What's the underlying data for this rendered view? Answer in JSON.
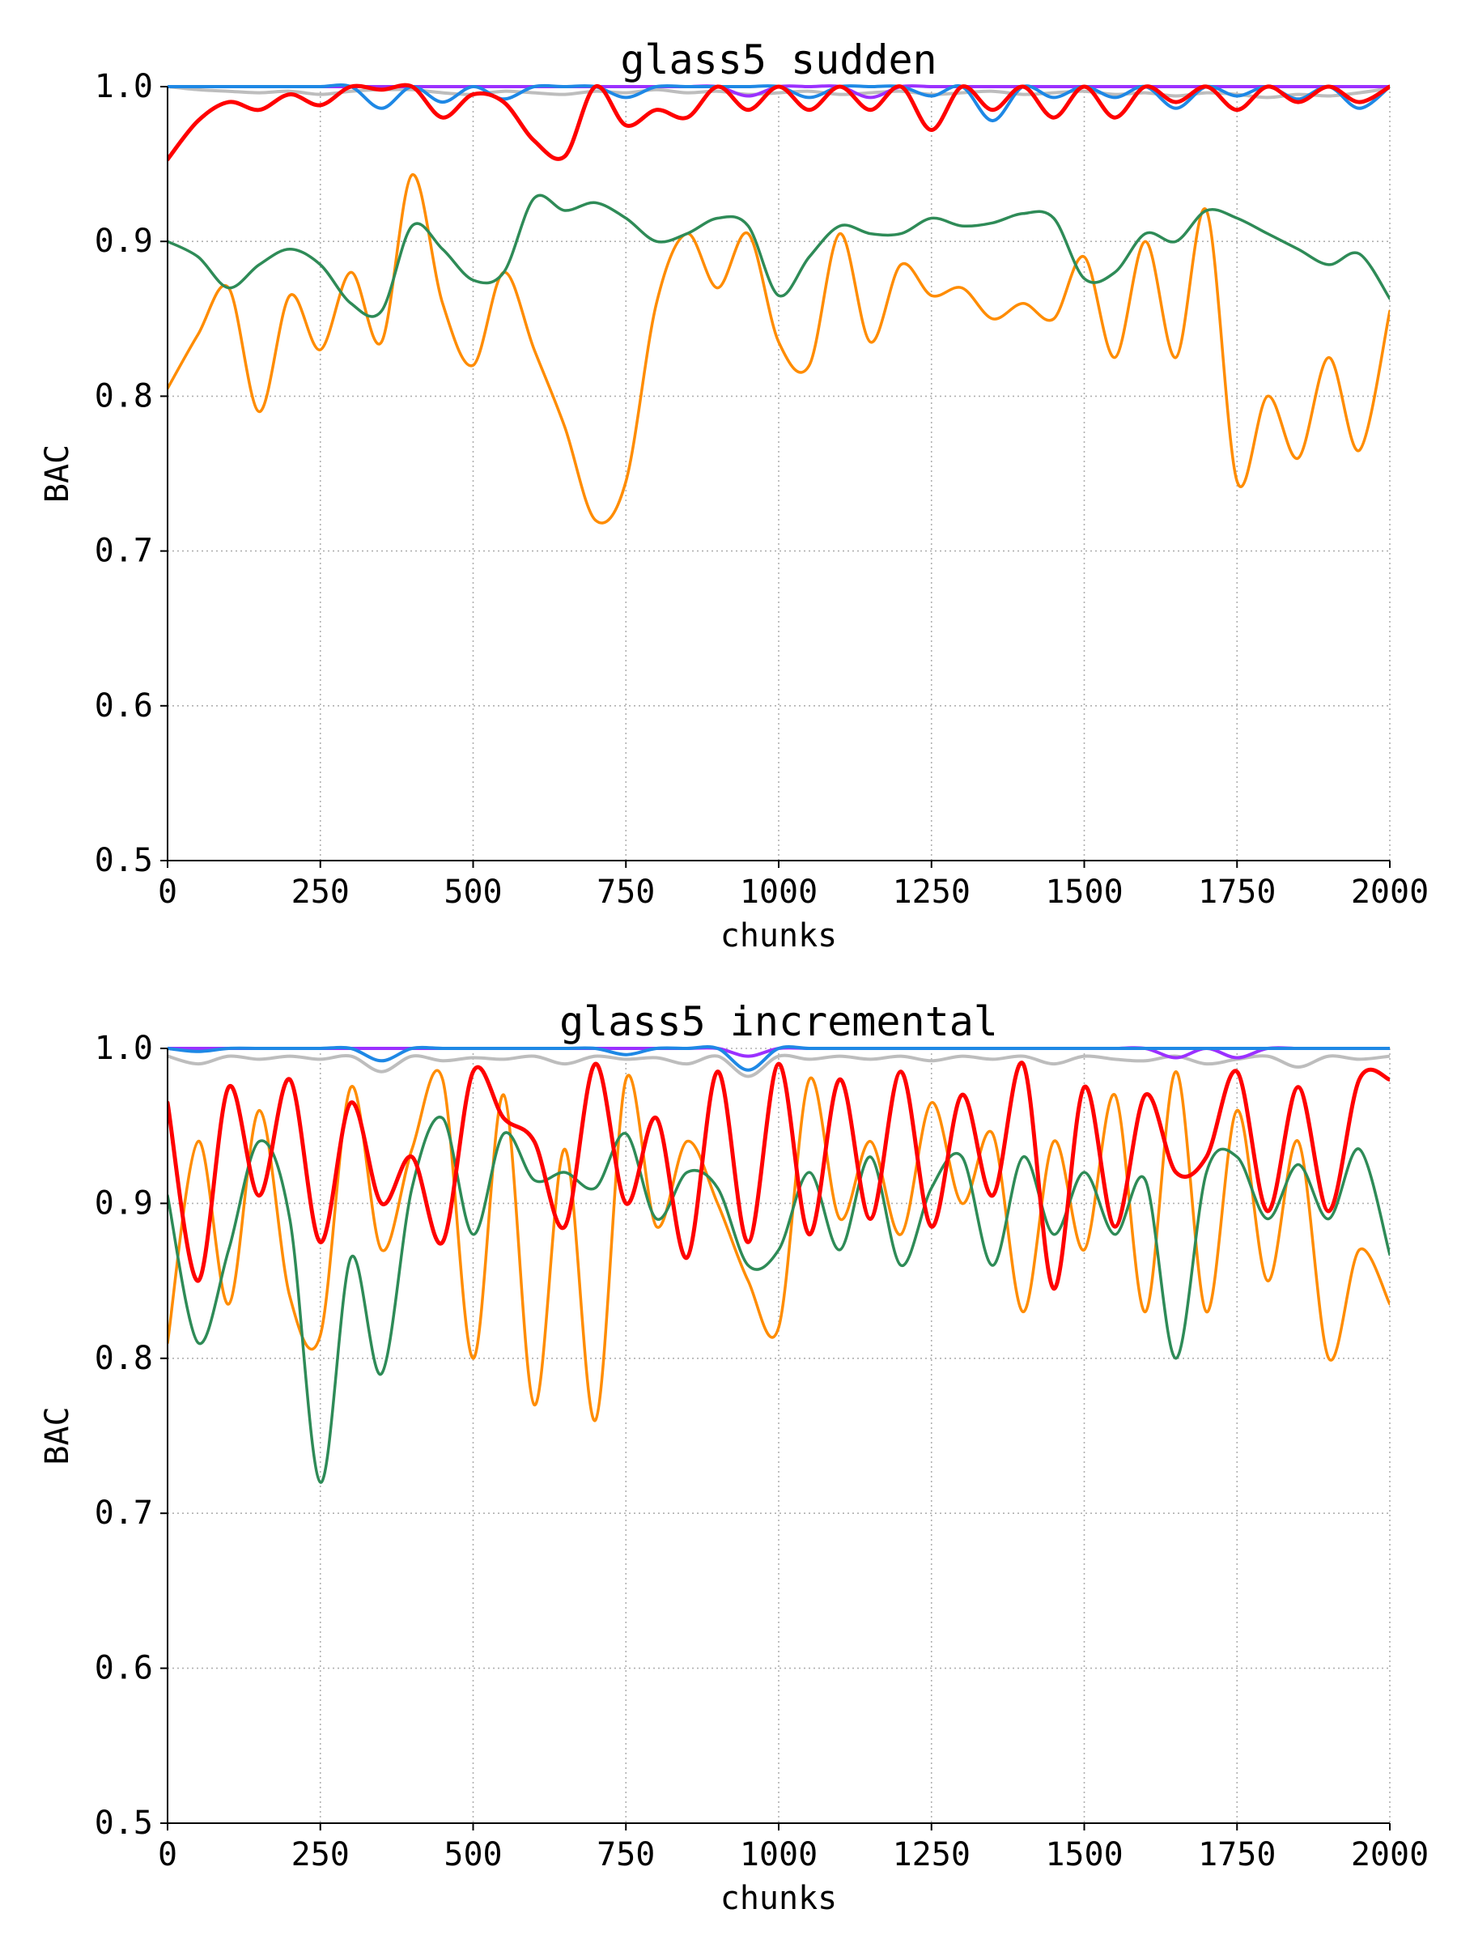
{
  "chart_data": [
    {
      "type": "line",
      "title": "glass5 sudden",
      "xlabel": "chunks",
      "ylabel": "BAC",
      "xlim": [
        0,
        2000
      ],
      "ylim": [
        0.5,
        1.0
      ],
      "x_ticks": [
        "0",
        "250",
        "500",
        "750",
        "1000",
        "1250",
        "1500",
        "1750",
        "2000"
      ],
      "y_ticks": [
        "0.5",
        "0.6",
        "0.7",
        "0.8",
        "0.9",
        "1.0"
      ],
      "grid": true,
      "legend": "none",
      "x": [
        0,
        50,
        100,
        150,
        200,
        250,
        300,
        350,
        400,
        450,
        500,
        550,
        600,
        650,
        700,
        750,
        800,
        850,
        900,
        950,
        1000,
        1050,
        1100,
        1150,
        1200,
        1250,
        1300,
        1350,
        1400,
        1450,
        1500,
        1550,
        1600,
        1650,
        1700,
        1750,
        1800,
        1850,
        1900,
        1950,
        2000
      ],
      "series": [
        {
          "color": "#bdbdbd",
          "width": 4,
          "values": [
            1.0,
            0.998,
            0.997,
            0.996,
            0.997,
            0.995,
            0.997,
            0.998,
            0.998,
            0.996,
            0.995,
            0.997,
            0.996,
            0.995,
            0.997,
            0.996,
            0.998,
            0.996,
            0.997,
            0.995,
            0.996,
            0.997,
            0.995,
            0.996,
            0.997,
            0.995,
            0.996,
            0.997,
            0.995,
            0.996,
            0.997,
            0.995,
            0.996,
            0.994,
            0.996,
            0.995,
            0.993,
            0.995,
            0.994,
            0.996,
            0.999
          ]
        },
        {
          "color": "#9b30ff",
          "width": 4,
          "values": [
            1.0,
            1.0,
            1.0,
            1.0,
            1.0,
            1.0,
            1.0,
            1.0,
            1.0,
            1.0,
            1.0,
            1.0,
            1.0,
            1.0,
            1.0,
            1.0,
            1.0,
            1.0,
            1.0,
            0.994,
            1.0,
            1.0,
            1.0,
            0.993,
            1.0,
            1.0,
            1.0,
            1.0,
            1.0,
            1.0,
            1.0,
            1.0,
            1.0,
            1.0,
            1.0,
            1.0,
            1.0,
            1.0,
            1.0,
            1.0,
            1.0
          ]
        },
        {
          "color": "#1e88e5",
          "width": 4,
          "values": [
            1.0,
            1.0,
            1.0,
            1.0,
            1.0,
            1.0,
            1.0,
            0.986,
            1.0,
            0.99,
            1.0,
            0.992,
            1.0,
            1.0,
            1.0,
            0.993,
            1.0,
            1.0,
            1.0,
            1.0,
            1.0,
            0.993,
            1.0,
            1.0,
            1.0,
            0.994,
            1.0,
            0.978,
            1.0,
            0.993,
            1.0,
            0.993,
            1.0,
            0.986,
            1.0,
            0.994,
            1.0,
            0.992,
            1.0,
            0.986,
            1.0
          ]
        },
        {
          "color": "#ff8c00",
          "width": 3.5,
          "values": [
            0.805,
            0.84,
            0.87,
            0.79,
            0.865,
            0.83,
            0.88,
            0.835,
            0.943,
            0.86,
            0.82,
            0.88,
            0.83,
            0.78,
            0.72,
            0.745,
            0.86,
            0.905,
            0.87,
            0.905,
            0.835,
            0.82,
            0.905,
            0.835,
            0.885,
            0.865,
            0.87,
            0.85,
            0.86,
            0.85,
            0.89,
            0.825,
            0.9,
            0.825,
            0.92,
            0.745,
            0.8,
            0.76,
            0.825,
            0.765,
            0.855
          ]
        },
        {
          "color": "#2e8b57",
          "width": 3.5,
          "values": [
            0.9,
            0.89,
            0.87,
            0.885,
            0.895,
            0.885,
            0.86,
            0.855,
            0.91,
            0.895,
            0.875,
            0.88,
            0.928,
            0.92,
            0.925,
            0.915,
            0.9,
            0.905,
            0.915,
            0.91,
            0.865,
            0.89,
            0.91,
            0.905,
            0.905,
            0.915,
            0.91,
            0.912,
            0.918,
            0.915,
            0.876,
            0.88,
            0.905,
            0.9,
            0.92,
            0.915,
            0.905,
            0.895,
            0.885,
            0.892,
            0.863
          ]
        },
        {
          "color": "#ff0000",
          "width": 5,
          "values": [
            0.953,
            0.978,
            0.99,
            0.985,
            0.995,
            0.988,
            1.0,
            0.998,
            1.0,
            0.98,
            0.995,
            0.99,
            0.965,
            0.955,
            1.0,
            0.975,
            0.985,
            0.98,
            1.0,
            0.985,
            1.0,
            0.985,
            1.0,
            0.985,
            1.0,
            0.972,
            1.0,
            0.985,
            1.0,
            0.98,
            1.0,
            0.98,
            1.0,
            0.99,
            1.0,
            0.985,
            1.0,
            0.99,
            1.0,
            0.99,
            1.0
          ]
        }
      ]
    },
    {
      "type": "line",
      "title": "glass5 incremental",
      "xlabel": "chunks",
      "ylabel": "BAC",
      "xlim": [
        0,
        2000
      ],
      "ylim": [
        0.5,
        1.0
      ],
      "x_ticks": [
        "0",
        "250",
        "500",
        "750",
        "1000",
        "1250",
        "1500",
        "1750",
        "2000"
      ],
      "y_ticks": [
        "0.5",
        "0.6",
        "0.7",
        "0.8",
        "0.9",
        "1.0"
      ],
      "grid": true,
      "legend": "none",
      "x": [
        0,
        50,
        100,
        150,
        200,
        250,
        300,
        350,
        400,
        450,
        500,
        550,
        600,
        650,
        700,
        750,
        800,
        850,
        900,
        950,
        1000,
        1050,
        1100,
        1150,
        1200,
        1250,
        1300,
        1350,
        1400,
        1450,
        1500,
        1550,
        1600,
        1650,
        1700,
        1750,
        1800,
        1850,
        1900,
        1950,
        2000
      ],
      "series": [
        {
          "color": "#bdbdbd",
          "width": 4,
          "values": [
            0.995,
            0.99,
            0.995,
            0.993,
            0.995,
            0.993,
            0.995,
            0.985,
            0.995,
            0.992,
            0.994,
            0.993,
            0.995,
            0.99,
            0.995,
            0.993,
            0.994,
            0.99,
            0.995,
            0.982,
            0.995,
            0.993,
            0.995,
            0.993,
            0.995,
            0.992,
            0.995,
            0.993,
            0.995,
            0.99,
            0.995,
            0.993,
            0.992,
            0.995,
            0.99,
            0.993,
            0.995,
            0.988,
            0.995,
            0.993,
            0.995
          ]
        },
        {
          "color": "#9b30ff",
          "width": 4,
          "values": [
            1.0,
            1.0,
            1.0,
            1.0,
            1.0,
            1.0,
            1.0,
            1.0,
            1.0,
            1.0,
            1.0,
            1.0,
            1.0,
            1.0,
            1.0,
            1.0,
            1.0,
            1.0,
            1.0,
            0.995,
            1.0,
            1.0,
            1.0,
            1.0,
            1.0,
            1.0,
            1.0,
            1.0,
            1.0,
            1.0,
            1.0,
            1.0,
            1.0,
            0.994,
            1.0,
            0.994,
            1.0,
            1.0,
            1.0,
            1.0,
            1.0
          ]
        },
        {
          "color": "#1e88e5",
          "width": 4,
          "values": [
            1.0,
            0.998,
            1.0,
            1.0,
            1.0,
            1.0,
            1.0,
            0.992,
            1.0,
            1.0,
            1.0,
            1.0,
            1.0,
            1.0,
            1.0,
            0.996,
            1.0,
            1.0,
            1.0,
            0.986,
            1.0,
            1.0,
            1.0,
            1.0,
            1.0,
            1.0,
            1.0,
            1.0,
            1.0,
            1.0,
            1.0,
            1.0,
            1.0,
            1.0,
            1.0,
            1.0,
            1.0,
            1.0,
            1.0,
            1.0,
            1.0
          ]
        },
        {
          "color": "#ff8c00",
          "width": 3.5,
          "values": [
            0.81,
            0.94,
            0.835,
            0.96,
            0.84,
            0.815,
            0.975,
            0.87,
            0.935,
            0.98,
            0.8,
            0.97,
            0.77,
            0.935,
            0.76,
            0.98,
            0.885,
            0.94,
            0.9,
            0.85,
            0.82,
            0.98,
            0.89,
            0.94,
            0.88,
            0.965,
            0.9,
            0.945,
            0.83,
            0.94,
            0.87,
            0.97,
            0.83,
            0.985,
            0.83,
            0.96,
            0.85,
            0.94,
            0.8,
            0.87,
            0.835
          ]
        },
        {
          "color": "#2e8b57",
          "width": 3.5,
          "values": [
            0.905,
            0.81,
            0.87,
            0.94,
            0.89,
            0.72,
            0.865,
            0.79,
            0.91,
            0.955,
            0.88,
            0.945,
            0.915,
            0.92,
            0.91,
            0.945,
            0.89,
            0.92,
            0.91,
            0.86,
            0.87,
            0.92,
            0.87,
            0.93,
            0.86,
            0.91,
            0.93,
            0.86,
            0.93,
            0.88,
            0.92,
            0.88,
            0.915,
            0.8,
            0.92,
            0.93,
            0.89,
            0.925,
            0.89,
            0.935,
            0.867
          ]
        },
        {
          "color": "#ff0000",
          "width": 5,
          "values": [
            0.965,
            0.85,
            0.975,
            0.905,
            0.98,
            0.875,
            0.965,
            0.9,
            0.93,
            0.875,
            0.985,
            0.955,
            0.94,
            0.885,
            0.99,
            0.9,
            0.955,
            0.865,
            0.985,
            0.875,
            0.99,
            0.88,
            0.98,
            0.89,
            0.985,
            0.885,
            0.97,
            0.905,
            0.99,
            0.845,
            0.975,
            0.885,
            0.97,
            0.92,
            0.93,
            0.985,
            0.895,
            0.975,
            0.895,
            0.98,
            0.98
          ]
        }
      ]
    }
  ]
}
